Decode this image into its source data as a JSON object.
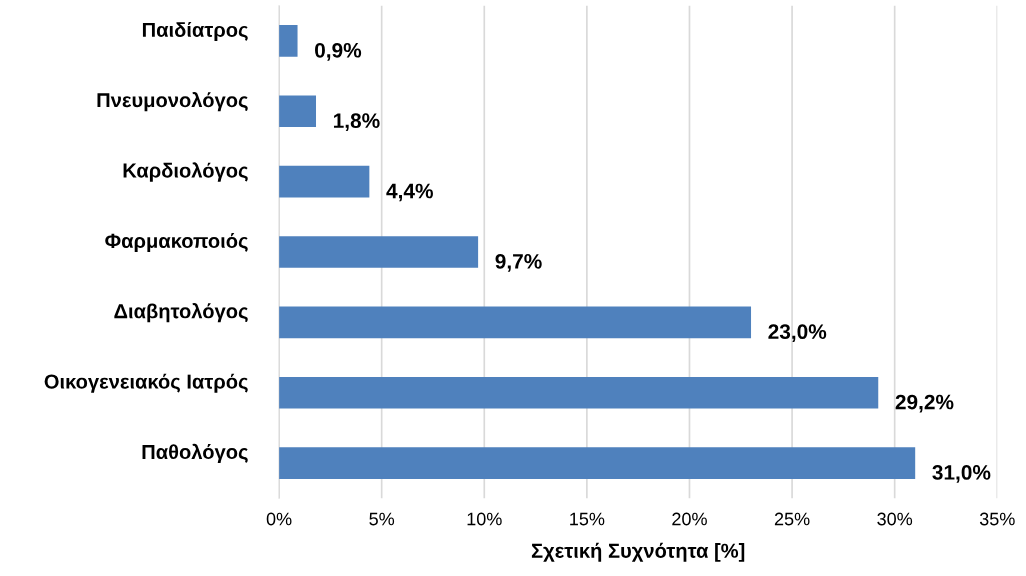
{
  "chart_data": {
    "type": "bar",
    "orientation": "horizontal",
    "xlabel": "Σχετική Συχνότητα [%]",
    "categories": [
      "Παιδίατρος",
      "Πνευμονολόγος",
      "Καρδιολόγος",
      "Φαρμακοποιός",
      "Διαβητολόγος",
      "Οικογενειακός Ιατρός",
      "Παθολόγος"
    ],
    "values": [
      0.9,
      1.8,
      4.4,
      9.7,
      23.0,
      29.2,
      31.0
    ],
    "value_labels": [
      "0,9%",
      "1,8%",
      "4,4%",
      "9,7%",
      "23,0%",
      "29,2%",
      "31,0%"
    ],
    "color": "#4f81bd",
    "xlim": [
      0,
      35
    ],
    "xticks": [
      {
        "value": 0,
        "label": "0%"
      },
      {
        "value": 5,
        "label": "5%"
      },
      {
        "value": 10,
        "label": "10%"
      },
      {
        "value": 15,
        "label": "15%"
      },
      {
        "value": 20,
        "label": "20%"
      },
      {
        "value": 25,
        "label": "25%"
      },
      {
        "value": 30,
        "label": "30%"
      },
      {
        "value": 35,
        "label": "35%"
      }
    ],
    "grid": "x",
    "legend": false
  }
}
